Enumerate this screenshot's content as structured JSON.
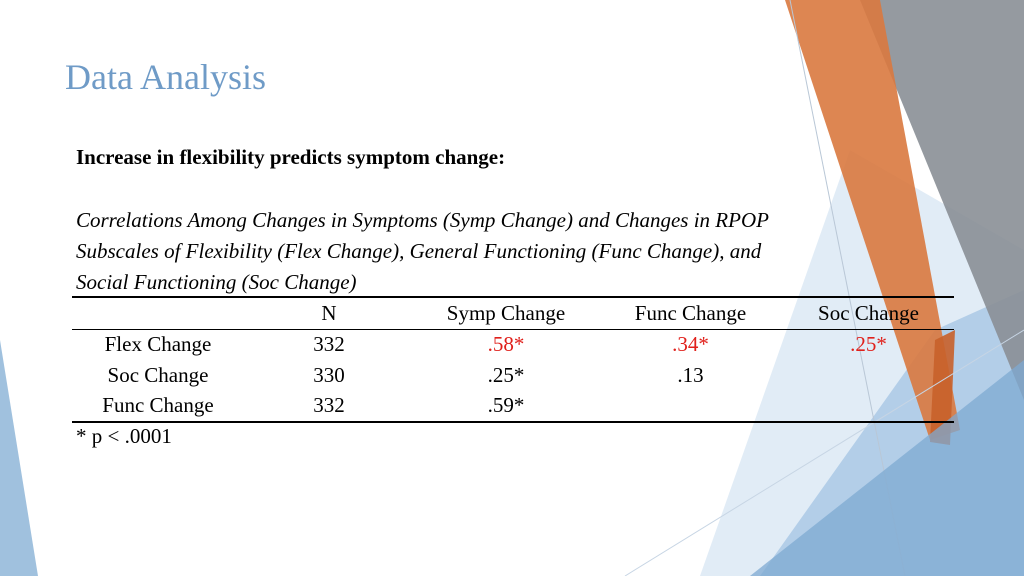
{
  "slide": {
    "title": "Data Analysis",
    "subtitle": "Increase in flexibility predicts symptom change:",
    "caption_lines": [
      "Correlations Among Changes in Symptoms (Symp Change) and Changes in RPOP",
      "Subscales of Flexibility (Flex Change), General Functioning (Func Change), and",
      "Social Functioning (Soc Change)"
    ],
    "table": {
      "headers": [
        "",
        "N",
        "Symp Change",
        "Func Change",
        "Soc Change"
      ],
      "rows": [
        {
          "cells": [
            "Flex Change",
            "332",
            ".58*",
            ".34*",
            ".25*"
          ],
          "significant": [
            false,
            false,
            true,
            true,
            true
          ]
        },
        {
          "cells": [
            "Soc Change",
            "330",
            ".25*",
            ".13",
            ""
          ],
          "significant": [
            false,
            false,
            false,
            false,
            false
          ]
        },
        {
          "cells": [
            "Func Change",
            "332",
            ".59*",
            "",
            ""
          ],
          "significant": [
            false,
            false,
            false,
            false,
            false
          ]
        }
      ]
    },
    "footnote": "* p < .0001"
  },
  "colors": {
    "title": "#6f9bc7",
    "significant": "#e0201b",
    "accent_orange": "#d9793f",
    "accent_blue": "#8fb6d8",
    "accent_gray": "#8a8f96"
  }
}
